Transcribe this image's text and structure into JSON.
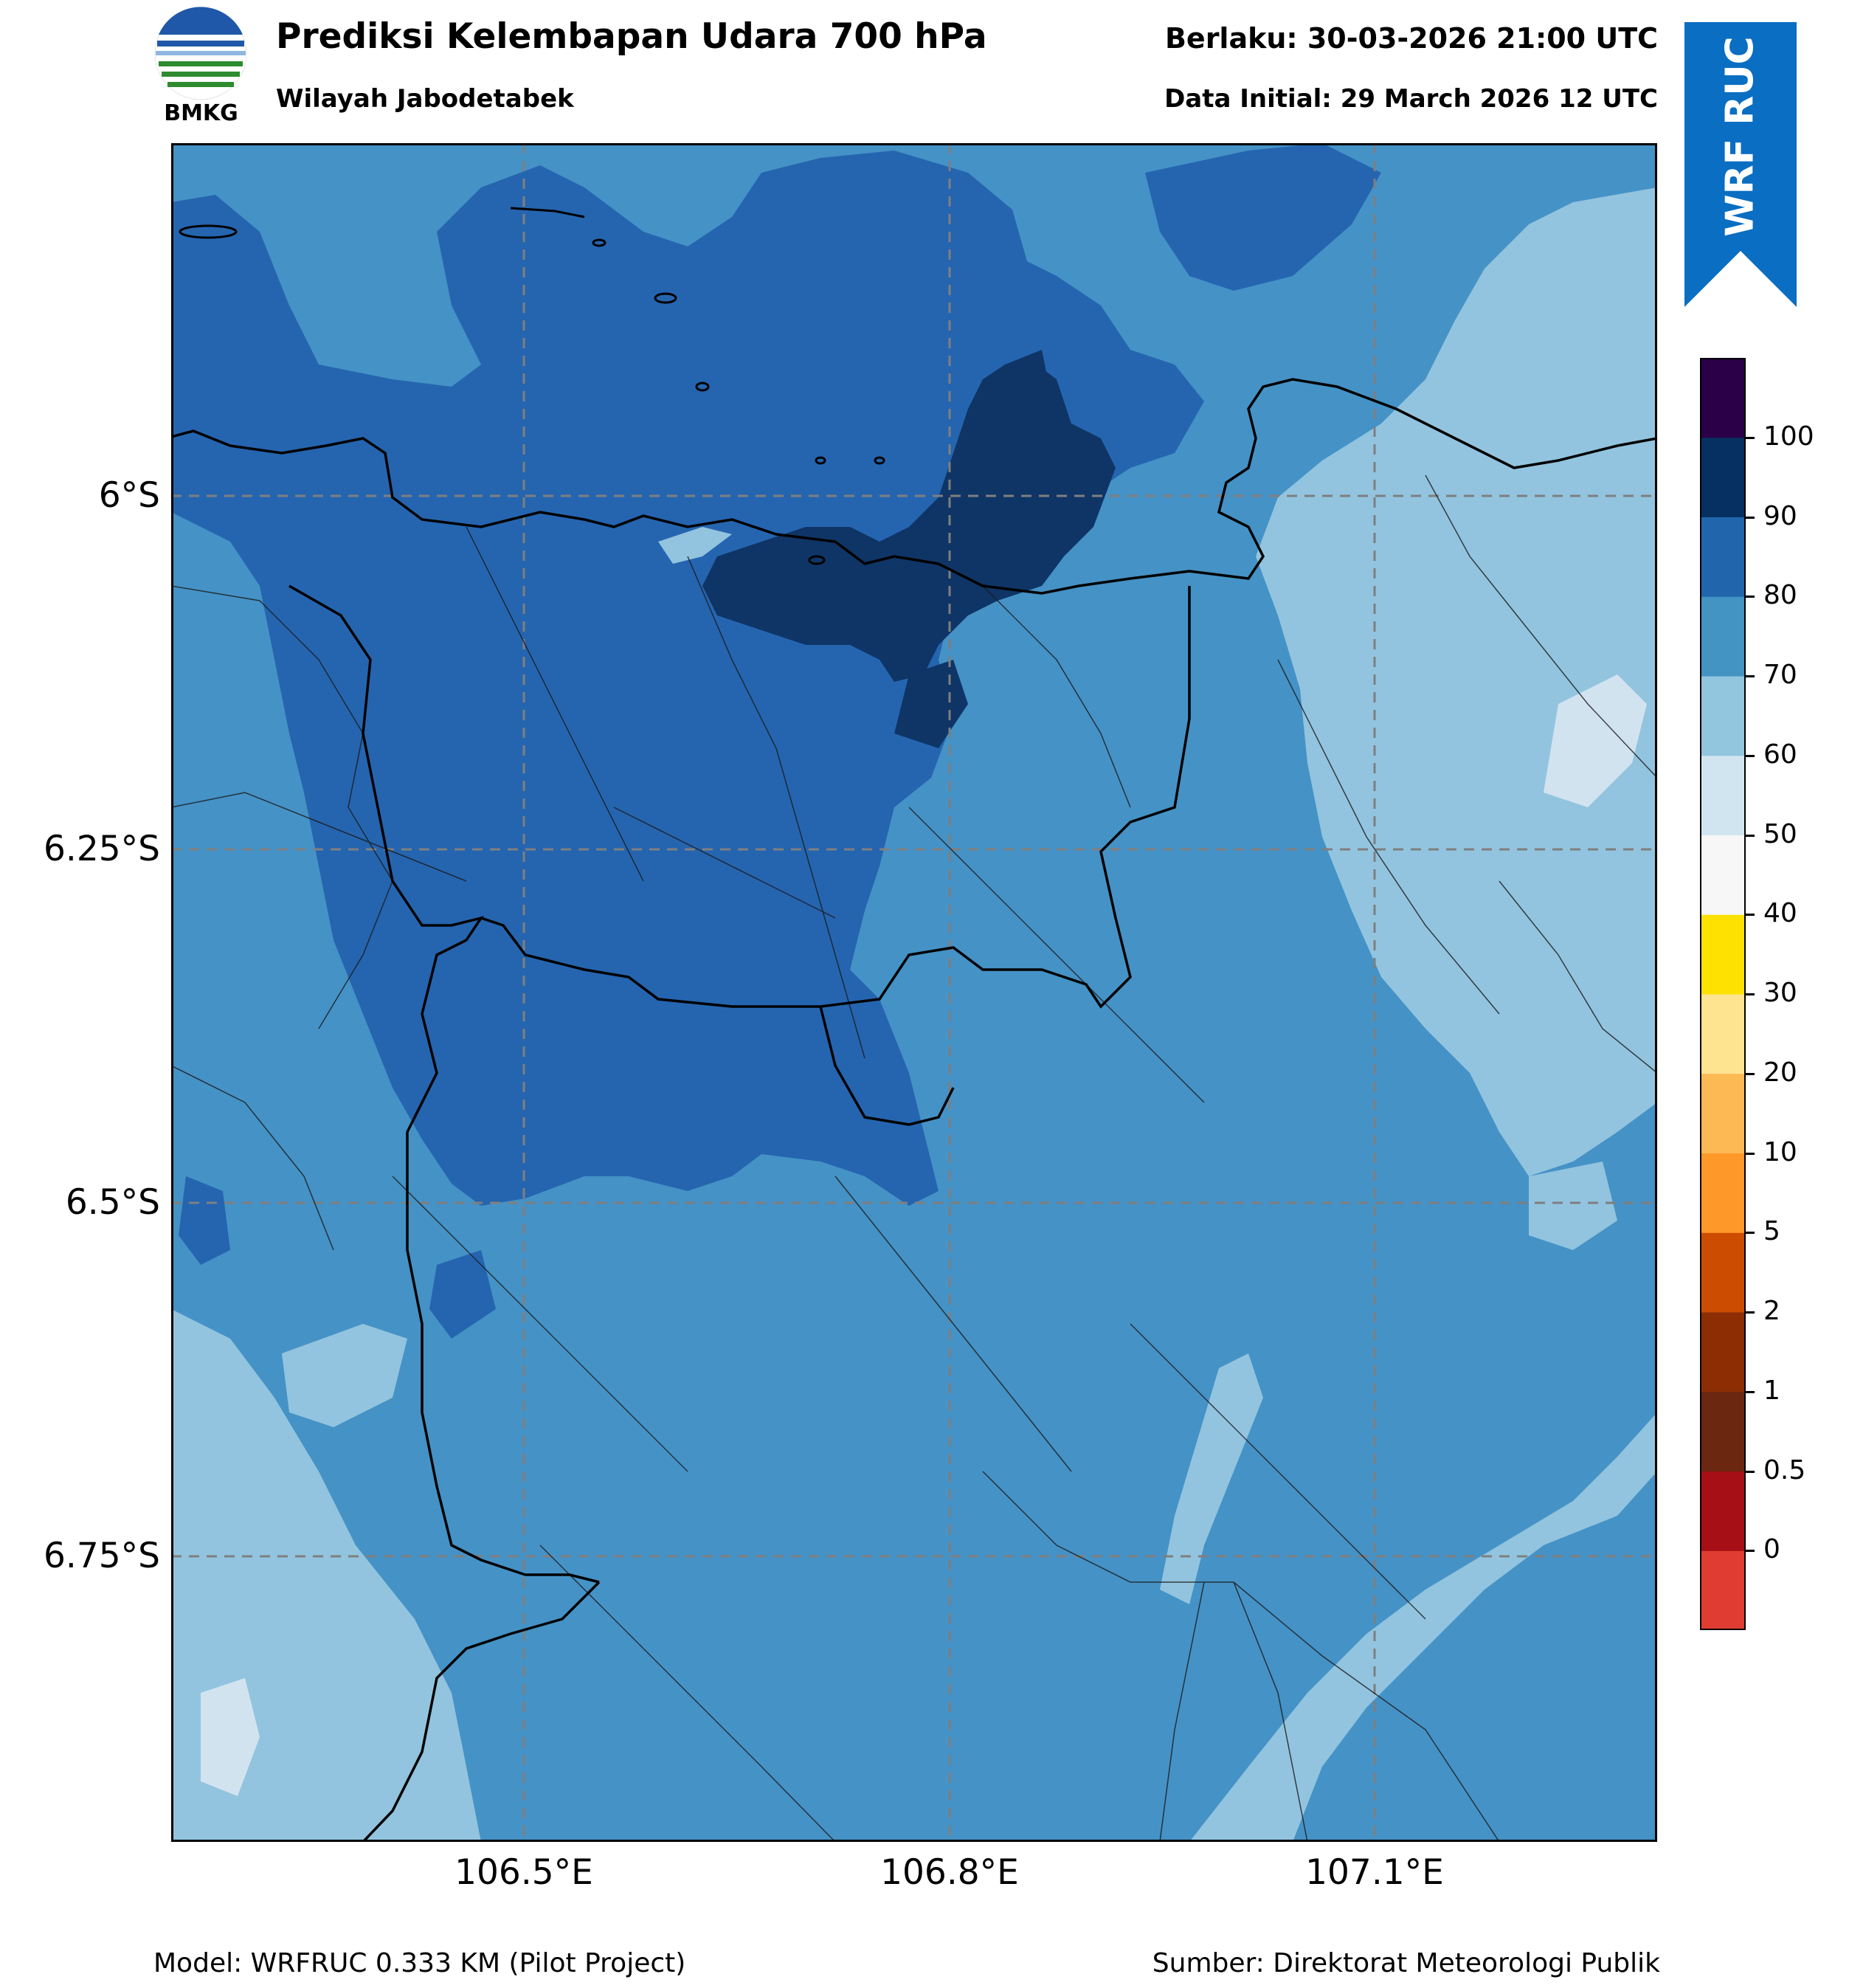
{
  "header": {
    "logo_text": "BMKG",
    "title": "Prediksi Kelembapan Udara 700 hPa",
    "subtitle": "Wilayah Jabodetabek",
    "valid": "Berlaku: 30-03-2026 21:00 UTC",
    "initial": "Data Initial: 29 March 2026 12 UTC",
    "badge": "WRF RUC"
  },
  "map": {
    "lat_labels": [
      "6°S",
      "6.25°S",
      "6.5°S",
      "6.75°S"
    ],
    "lon_labels": [
      "106.5°E",
      "106.8°E",
      "107.1°E"
    ],
    "gridlines": true,
    "colors": {
      "band_60_70": "#92c4df",
      "band_70_80": "#4592c6",
      "band_80_90": "#2565b0",
      "band_90_100": "#0f3566",
      "band_50_60": "#d2e3f0",
      "outline": "#000000"
    }
  },
  "colorbar": {
    "ticks": [
      "0",
      "0.5",
      "1",
      "2",
      "5",
      "10",
      "20",
      "30",
      "40",
      "50",
      "60",
      "70",
      "80",
      "90",
      "100"
    ],
    "colors": [
      "#e03c31",
      "#a50f15",
      "#6b2710",
      "#8c2d04",
      "#cc4c02",
      "#fe9929",
      "#fdb953",
      "#fee391",
      "#fde100",
      "#f7f7f7",
      "#d1e5f0",
      "#92c5de",
      "#4393c3",
      "#2166ac",
      "#053061",
      "#2b0049"
    ]
  },
  "footer": {
    "model": "Model: WRFRUC 0.333 KM (Pilot Project)",
    "source": "Sumber: Direktorat Meteorologi Publik"
  }
}
